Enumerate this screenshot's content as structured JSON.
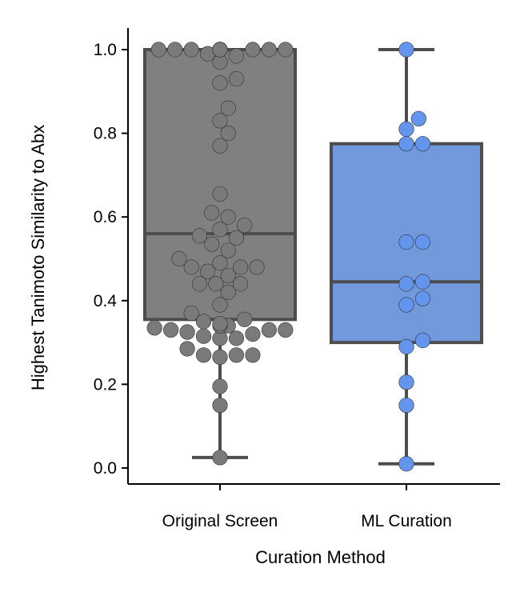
{
  "chart_data": {
    "type": "box_swarm",
    "xlabel": "Curation Method",
    "ylabel": "Highest Tanimoto Similarity to Abx",
    "ylim": [
      -0.04,
      1.05
    ],
    "yticks": [
      "0.0",
      "0.2",
      "0.4",
      "0.6",
      "0.8",
      "1.0"
    ],
    "categories": [
      "Original Screen",
      "ML Curation"
    ],
    "series": [
      {
        "category": "Original Screen",
        "box_color": "#808080",
        "point_color": "#7a7a7a",
        "box": {
          "whisker_low": 0.025,
          "q1": 0.355,
          "median": 0.56,
          "q3": 1.0,
          "whisker_high": 1.0
        },
        "points": [
          1.0,
          1.0,
          1.0,
          1.0,
          1.0,
          1.0,
          1.0,
          1.0,
          1.0,
          1.0,
          1.0,
          1.0,
          1.0,
          1.0,
          0.985,
          0.97,
          0.99,
          0.93,
          0.92,
          0.86,
          0.83,
          0.8,
          0.77,
          0.655,
          0.61,
          0.6,
          0.58,
          0.57,
          0.555,
          0.55,
          0.535,
          0.52,
          0.5,
          0.49,
          0.48,
          0.48,
          0.48,
          0.47,
          0.46,
          0.44,
          0.44,
          0.44,
          0.42,
          0.39,
          0.37,
          0.355,
          0.35,
          0.345,
          0.34,
          0.34,
          0.335,
          0.33,
          0.33,
          0.33,
          0.325,
          0.32,
          0.315,
          0.31,
          0.31,
          0.285,
          0.27,
          0.27,
          0.27,
          0.265,
          0.195,
          0.15,
          0.025
        ]
      },
      {
        "category": "ML Curation",
        "box_color": "#7199dc",
        "point_color": "#6495ed",
        "box": {
          "whisker_low": 0.01,
          "q1": 0.3,
          "median": 0.445,
          "q3": 0.775,
          "whisker_high": 1.0
        },
        "points": [
          1.0,
          0.835,
          0.81,
          0.775,
          0.775,
          0.54,
          0.54,
          0.445,
          0.44,
          0.405,
          0.39,
          0.305,
          0.29,
          0.205,
          0.15,
          0.01
        ]
      }
    ]
  }
}
